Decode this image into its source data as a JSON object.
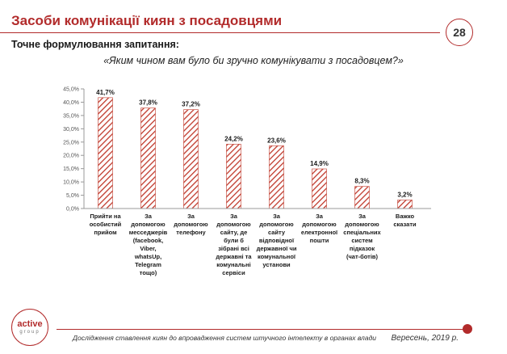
{
  "slide": {
    "title": "Засоби комунікації киян з посадовцями",
    "page_number": "28",
    "subtitle": "Точне формулювання запитання:",
    "question": "«Яким чином вам було би зручно комунікувати з посадовцем?»"
  },
  "footer": {
    "logo_main": "active",
    "logo_sub": "group",
    "study_text": "Дослідження ставлення киян до впровадження систем штучного інтелекту в органах влади",
    "date": "Вересень, 2019 р."
  },
  "colors": {
    "accent": "#b22b2b",
    "bar_hatch": "#c0392b",
    "text": "#1a1a1a",
    "grid_axis": "#999999"
  },
  "chart_data": {
    "type": "bar",
    "categories": [
      [
        "Прийти на",
        "особистий",
        "прийом"
      ],
      [
        "За",
        "допомогою",
        "месседжерів",
        "(facebook,",
        "Viber,",
        "whatsUp,",
        "Telegram",
        "тощо)"
      ],
      [
        "За",
        "допомогою",
        "телефону"
      ],
      [
        "За",
        "допомогою",
        "сайту, де",
        "були б",
        "зібрані всі",
        "державні та",
        "комунальні",
        "сервіси"
      ],
      [
        "За",
        "допомогою",
        "сайту",
        "відповідної",
        "державної чи",
        "комунальної",
        "установи"
      ],
      [
        "За",
        "допомогою",
        "електронної",
        "пошти"
      ],
      [
        "За",
        "допомогою",
        "спеціальних",
        "систем",
        "підказок",
        "(чат-ботів)"
      ],
      [
        "Важко",
        "сказати"
      ]
    ],
    "values": [
      41.7,
      37.8,
      37.2,
      24.2,
      23.6,
      14.9,
      8.3,
      3.2
    ],
    "value_labels": [
      "41,7%",
      "37,8%",
      "37,2%",
      "24,2%",
      "23,6%",
      "14,9%",
      "8,3%",
      "3,2%"
    ],
    "y_ticks": [
      0,
      5,
      10,
      15,
      20,
      25,
      30,
      35,
      40,
      45
    ],
    "y_tick_labels": [
      "0,0%",
      "5,0%",
      "10,0%",
      "15,0%",
      "20,0%",
      "25,0%",
      "30,0%",
      "35,0%",
      "40,0%",
      "45,0%"
    ],
    "ylim": [
      0,
      45
    ],
    "grid": false,
    "legend": "none",
    "bar_fill": "red diagonal hatch"
  }
}
